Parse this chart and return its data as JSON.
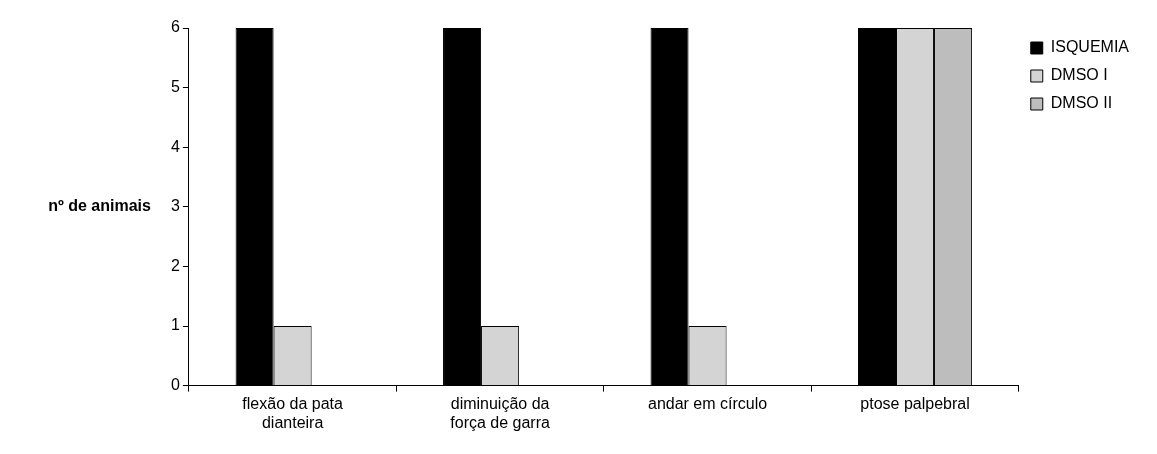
{
  "chart_data": {
    "type": "bar",
    "ylabel": "nº de animais",
    "categories": [
      "flexão da pata dianteira",
      "diminuição da força de garra",
      "andar em círculo",
      "ptose palpebral"
    ],
    "series": [
      {
        "name": "ISQUEMIA",
        "color": "#000000",
        "values": [
          6,
          6,
          6,
          6
        ]
      },
      {
        "name": "DMSO I",
        "color": "#d4d4d4",
        "values": [
          1,
          1,
          1,
          6
        ]
      },
      {
        "name": "DMSO II",
        "color": "#bdbdbd",
        "values": [
          0,
          0,
          0,
          6
        ]
      }
    ],
    "ylim": [
      0,
      6
    ],
    "yticks": [
      0,
      1,
      2,
      3,
      4,
      5,
      6
    ],
    "legend": "top right"
  }
}
